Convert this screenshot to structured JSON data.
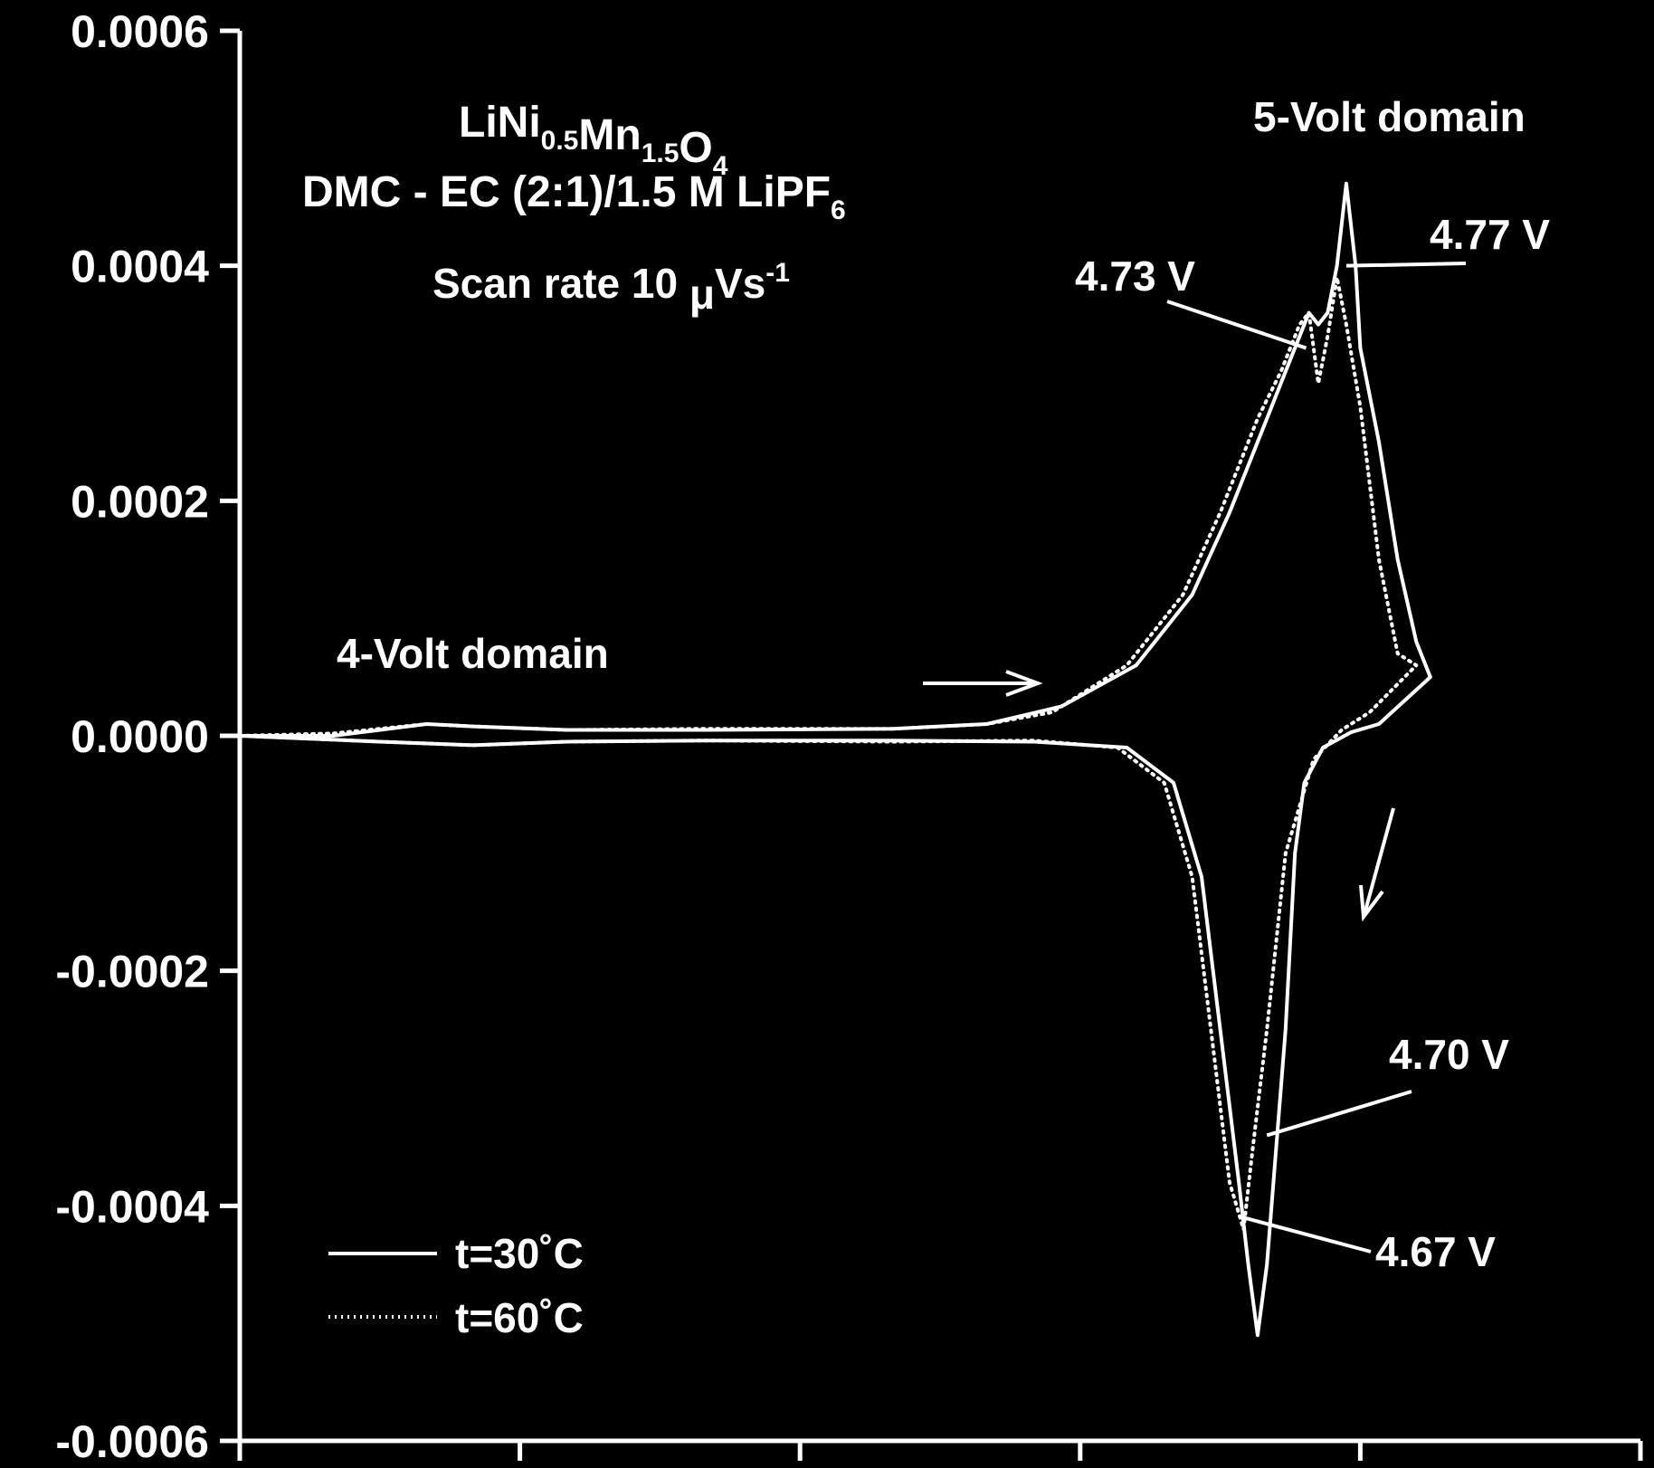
{
  "chart_data": {
    "type": "line",
    "title_lines": [
      {
        "parts": [
          {
            "t": "LiNi",
            "sub": false
          },
          {
            "t": "0.5",
            "sub": true
          },
          {
            "t": "Mn",
            "sub": false
          },
          {
            "t": "1.5",
            "sub": true
          },
          {
            "t": "O",
            "sub": false
          },
          {
            "t": "4",
            "sub": true
          }
        ]
      },
      {
        "parts": [
          {
            "t": "DMC - EC (2:1)/1.5 M LiPF",
            "sub": false
          },
          {
            "t": "6",
            "sub": true
          }
        ]
      }
    ],
    "scan_rate": {
      "text": "Scan rate 10",
      "mu": "μ",
      "unit": "Vs",
      "exp": "-1"
    },
    "xlabel": "",
    "ylabel": "",
    "xlim": [
      3.5,
      5.0
    ],
    "ylim": [
      -0.0006,
      0.0006
    ],
    "yticks": [
      "-0.0006",
      "-0.0004",
      "-0.0002",
      "0.0000",
      "0.0002",
      "0.0004",
      "0.0006"
    ],
    "xtick_values": [
      3.5,
      3.8,
      4.1,
      4.4,
      4.7,
      5.0
    ],
    "grid": false,
    "legend_position": "bottom-left",
    "series": [
      {
        "name": "t=30˚C",
        "style": "solid",
        "points": [
          [
            3.5,
            0.0
          ],
          [
            3.6,
            0.0
          ],
          [
            3.65,
            5e-06
          ],
          [
            3.7,
            1e-05
          ],
          [
            3.75,
            8e-06
          ],
          [
            3.85,
            5e-06
          ],
          [
            4.0,
            5e-06
          ],
          [
            4.2,
            6e-06
          ],
          [
            4.3,
            1e-05
          ],
          [
            4.38,
            2.5e-05
          ],
          [
            4.46,
            6e-05
          ],
          [
            4.52,
            0.00012
          ],
          [
            4.56,
            0.00019
          ],
          [
            4.6,
            0.00027
          ],
          [
            4.62,
            0.00031
          ],
          [
            4.635,
            0.00034
          ],
          [
            4.645,
            0.00036
          ],
          [
            4.655,
            0.00035
          ],
          [
            4.665,
            0.00036
          ],
          [
            4.675,
            0.0004
          ],
          [
            4.685,
            0.00047
          ],
          [
            4.695,
            0.0004
          ],
          [
            4.7,
            0.00033
          ],
          [
            4.72,
            0.00025
          ],
          [
            4.74,
            0.00015
          ],
          [
            4.76,
            8e-05
          ],
          [
            4.775,
            5e-05
          ],
          [
            4.72,
            1e-05
          ],
          [
            4.69,
            3e-06
          ],
          [
            4.66,
            -1e-05
          ],
          [
            4.64,
            -4e-05
          ],
          [
            4.63,
            -0.0001
          ],
          [
            4.62,
            -0.00025
          ],
          [
            4.61,
            -0.00035
          ],
          [
            4.6,
            -0.00045
          ],
          [
            4.59,
            -0.00051
          ],
          [
            4.58,
            -0.00045
          ],
          [
            4.57,
            -0.00038
          ],
          [
            4.55,
            -0.00025
          ],
          [
            4.53,
            -0.00012
          ],
          [
            4.5,
            -4e-05
          ],
          [
            4.45,
            -1e-05
          ],
          [
            4.35,
            -5e-06
          ],
          [
            4.2,
            -4e-06
          ],
          [
            4.0,
            -4e-06
          ],
          [
            3.85,
            -5e-06
          ],
          [
            3.75,
            -8e-06
          ],
          [
            3.65,
            -5e-06
          ],
          [
            3.5,
            0.0
          ]
        ]
      },
      {
        "name": "t=60˚C",
        "style": "dotted",
        "points": [
          [
            3.5,
            0.0
          ],
          [
            3.6,
            2e-06
          ],
          [
            3.65,
            6e-06
          ],
          [
            3.7,
            1e-05
          ],
          [
            3.75,
            8e-06
          ],
          [
            3.85,
            5e-06
          ],
          [
            4.0,
            6e-06
          ],
          [
            4.2,
            6e-06
          ],
          [
            4.3,
            1e-05
          ],
          [
            4.37,
            2e-05
          ],
          [
            4.45,
            6e-05
          ],
          [
            4.51,
            0.00012
          ],
          [
            4.55,
            0.00019
          ],
          [
            4.59,
            0.00027
          ],
          [
            4.615,
            0.00031
          ],
          [
            4.635,
            0.00035
          ],
          [
            4.645,
            0.00036
          ],
          [
            4.655,
            0.0003
          ],
          [
            4.665,
            0.00034
          ],
          [
            4.675,
            0.00039
          ],
          [
            4.685,
            0.00035
          ],
          [
            4.7,
            0.00028
          ],
          [
            4.72,
            0.00015
          ],
          [
            4.74,
            7e-05
          ],
          [
            4.76,
            6e-05
          ],
          [
            4.71,
            2e-05
          ],
          [
            4.68,
            5e-06
          ],
          [
            4.65,
            -2e-05
          ],
          [
            4.62,
            -0.0001
          ],
          [
            4.6,
            -0.00025
          ],
          [
            4.585,
            -0.00035
          ],
          [
            4.575,
            -0.00042
          ],
          [
            4.56,
            -0.00038
          ],
          [
            4.54,
            -0.00025
          ],
          [
            4.52,
            -0.00012
          ],
          [
            4.49,
            -4e-05
          ],
          [
            4.44,
            -1e-05
          ],
          [
            4.35,
            -4e-06
          ],
          [
            4.2,
            -5e-06
          ],
          [
            4.0,
            -4e-06
          ],
          [
            3.85,
            -5e-06
          ],
          [
            3.75,
            -8e-06
          ],
          [
            3.65,
            -5e-06
          ],
          [
            3.5,
            0.0
          ]
        ]
      }
    ],
    "annotations": {
      "five_volt": "5-Volt domain",
      "four_volt": "4-Volt domain",
      "label_477": "4.77 V",
      "label_473": "4.73 V",
      "label_470": "4.70 V",
      "label_467": "4.67 V"
    },
    "annotation_points": [
      {
        "key": "label_477",
        "x": 4.685,
        "y": 0.0004
      },
      {
        "key": "label_473",
        "x": 4.642,
        "y": 0.00033
      },
      {
        "key": "label_470",
        "x": 4.6,
        "y": -0.00034
      },
      {
        "key": "label_467",
        "x": 4.575,
        "y": -0.00041
      }
    ]
  }
}
